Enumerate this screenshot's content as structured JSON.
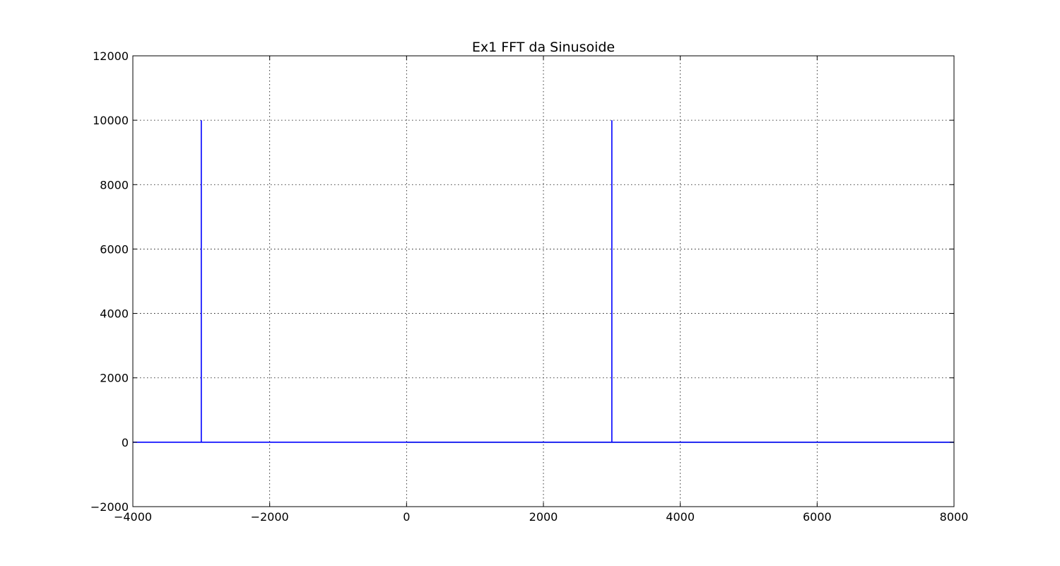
{
  "chart_data": {
    "type": "line",
    "title": "Ex1 FFT da Sinusoide",
    "xlabel": "",
    "ylabel": "",
    "xlim": [
      -4000,
      8000
    ],
    "ylim": [
      -2000,
      12000
    ],
    "xticks": [
      -4000,
      -2000,
      0,
      2000,
      4000,
      6000,
      8000
    ],
    "xtick_labels": [
      "−4000",
      "−2000",
      "0",
      "2000",
      "4000",
      "6000",
      "8000"
    ],
    "yticks": [
      -2000,
      0,
      2000,
      4000,
      6000,
      8000,
      10000,
      12000
    ],
    "ytick_labels": [
      "−2000",
      "0",
      "2000",
      "4000",
      "6000",
      "8000",
      "10000",
      "12000"
    ],
    "grid": true,
    "series": [
      {
        "color": "#0000ff",
        "x": [
          -4000,
          -3000,
          -3000,
          -3000,
          0,
          3000,
          3000,
          3000,
          8000
        ],
        "y": [
          0,
          0,
          10000,
          0,
          0,
          0,
          10000,
          0,
          0
        ]
      },
      {
        "color": "#008000",
        "x": [
          0,
          8000
        ],
        "y": [
          0,
          0
        ]
      }
    ]
  }
}
